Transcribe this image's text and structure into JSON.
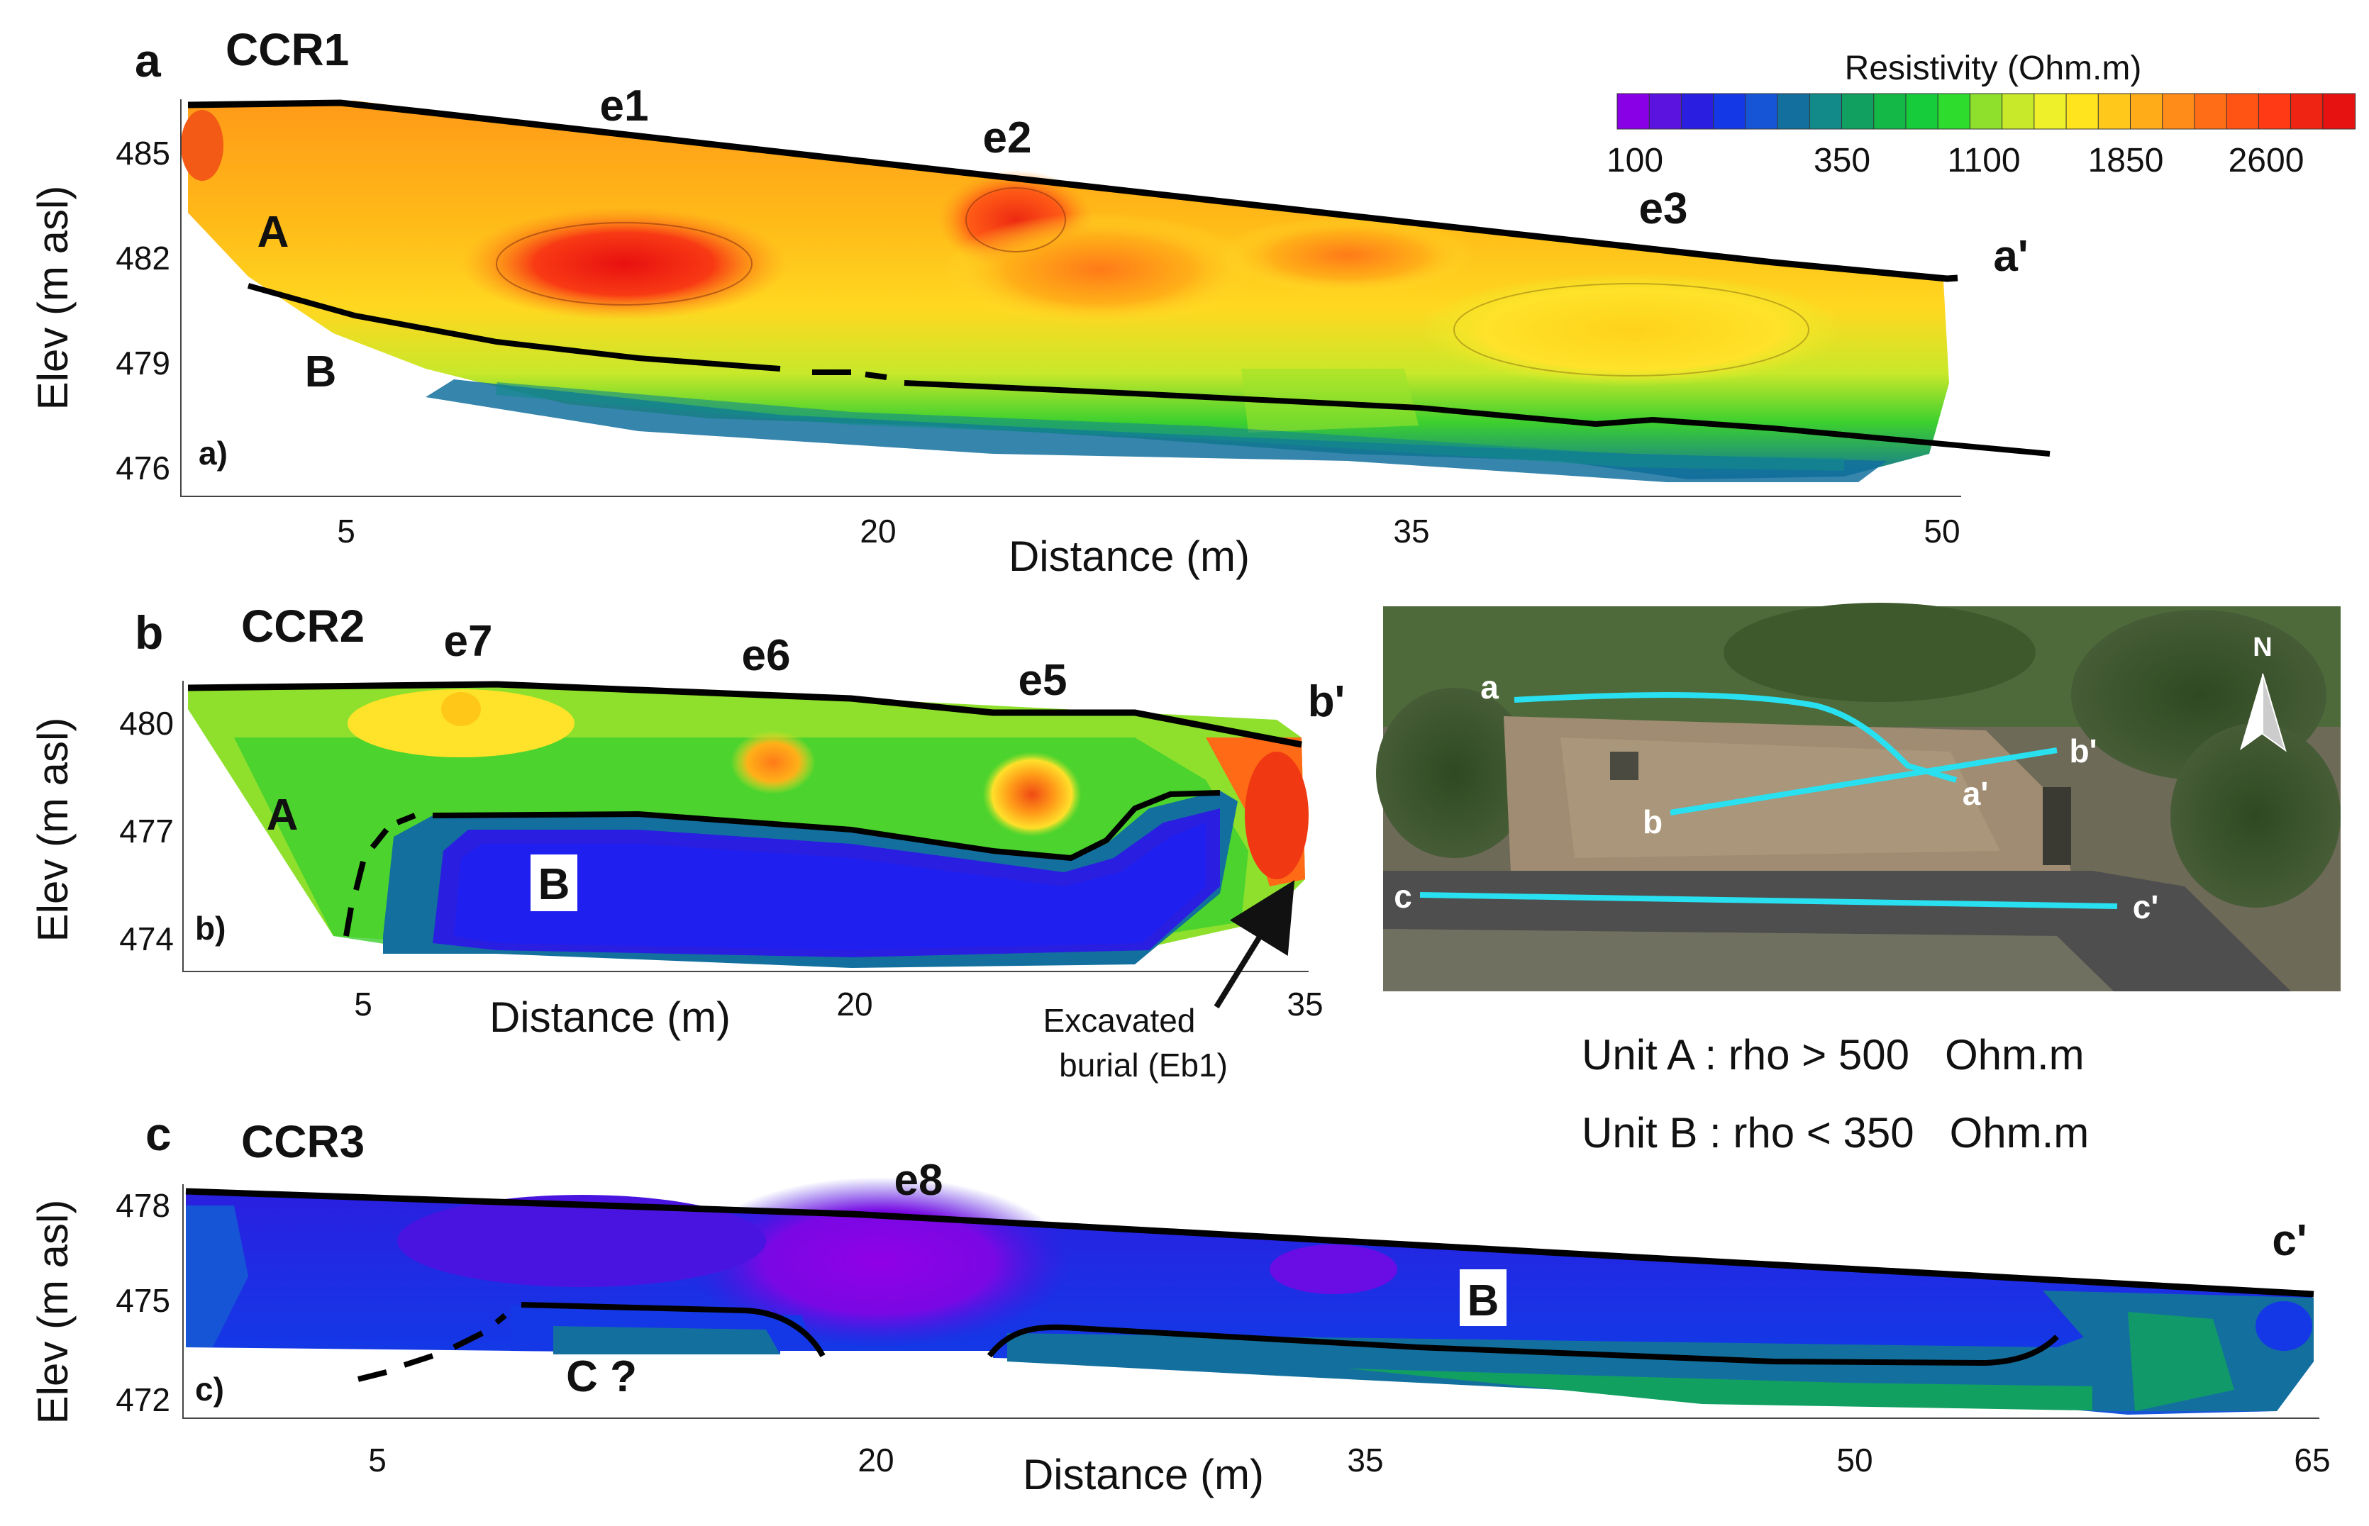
{
  "legend": {
    "title": "Resistivity (Ohm.m)",
    "tick_labels": [
      "100",
      "350",
      "1100",
      "1850",
      "2600"
    ],
    "colors": [
      "#8a00e6",
      "#5b14e0",
      "#2a1fe0",
      "#1438e6",
      "#1656d6",
      "#13709e",
      "#138a8a",
      "#12a060",
      "#14b846",
      "#16cc3a",
      "#2edc2e",
      "#8ee02c",
      "#c8e82a",
      "#eef02a",
      "#ffe41e",
      "#ffc81a",
      "#ffac18",
      "#ff8c18",
      "#ff6e16",
      "#ff5414",
      "#ff3a14",
      "#f02412",
      "#e61212"
    ]
  },
  "panels": [
    {
      "letter": "a",
      "title": "CCR1",
      "sublabel": "a)",
      "end_label": "a'",
      "y_axis_label": "Elev (m asl)",
      "x_axis_label": "Distance (m)",
      "y_ticks": [
        "485",
        "482",
        "479",
        "476"
      ],
      "x_ticks": [
        "5",
        "20",
        "35",
        "50"
      ],
      "annotations": [
        "e1",
        "e2",
        "e3",
        "A",
        "B"
      ]
    },
    {
      "letter": "b",
      "title": "CCR2",
      "sublabel": "b)",
      "end_label": "b'",
      "y_axis_label": "Elev (m asl)",
      "x_axis_label": "Distance (m)",
      "y_ticks": [
        "480",
        "477",
        "474"
      ],
      "x_ticks": [
        "5",
        "20",
        "35"
      ],
      "annotations": [
        "e7",
        "e6",
        "e5",
        "A",
        "B"
      ],
      "callout": [
        "Excavated",
        "burial (Eb1)"
      ]
    },
    {
      "letter": "c",
      "title": "CCR3",
      "sublabel": "c)",
      "end_label": "c'",
      "y_axis_label": "Elev (m asl)",
      "x_axis_label": "Distance (m)",
      "y_ticks": [
        "478",
        "475",
        "472"
      ],
      "x_ticks": [
        "5",
        "20",
        "35",
        "50",
        "65"
      ],
      "annotations": [
        "e8",
        "B",
        "C ?"
      ]
    }
  ],
  "map": {
    "north": "N",
    "line_labels": [
      "a",
      "a'",
      "b",
      "b'",
      "c",
      "c'"
    ],
    "line_color": "#29e0f0"
  },
  "units_info": [
    "Unit A : rho > 500   Ohm.m",
    "Unit B : rho < 350   Ohm.m"
  ]
}
